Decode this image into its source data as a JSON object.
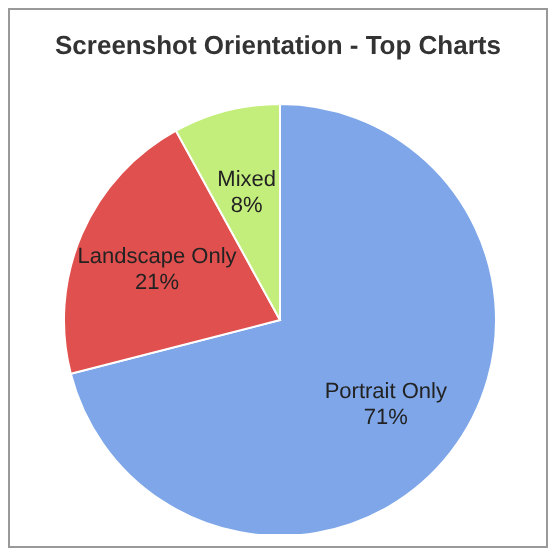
{
  "chart_data": {
    "type": "pie",
    "title": "Screenshot Orientation - Top Charts",
    "categories": [
      "Portrait Only",
      "Landscape Only",
      "Mixed"
    ],
    "values": [
      71,
      21,
      8
    ],
    "value_labels": [
      "71%",
      "21%",
      "8%"
    ],
    "colors": [
      "#7ea6e8",
      "#e0504e",
      "#c4ee7c"
    ],
    "legend": false
  }
}
